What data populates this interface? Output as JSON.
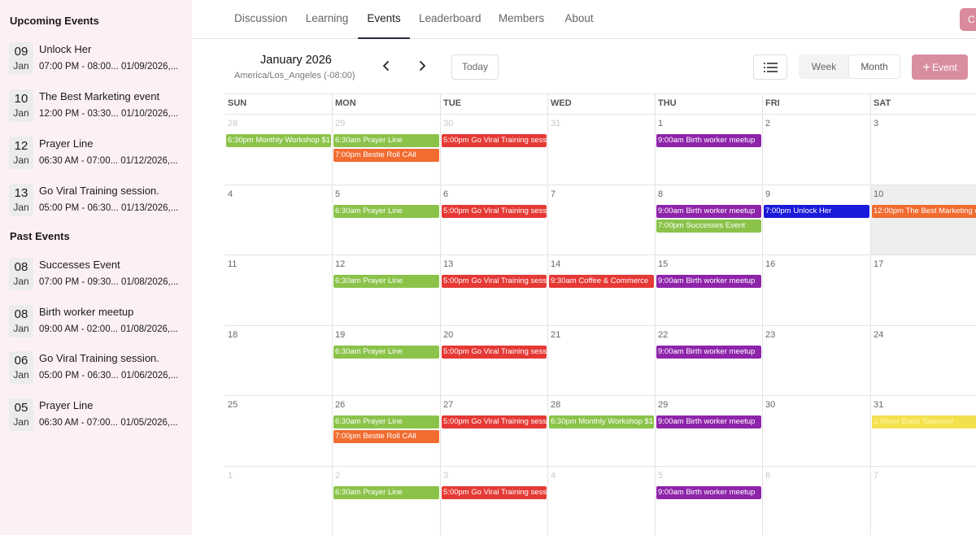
{
  "sidebar": {
    "upcoming_title": "Upcoming Events",
    "upcoming": [
      {
        "day": "09",
        "month": "Jan",
        "title": "Unlock Her",
        "time": "07:00 PM - 08:00...   01/09/2026,..."
      },
      {
        "day": "10",
        "month": "Jan",
        "title": "The Best Marketing event",
        "time": "12:00 PM - 03:30...   01/10/2026,..."
      },
      {
        "day": "12",
        "month": "Jan",
        "title": "Prayer Line",
        "time": "06:30 AM - 07:00...   01/12/2026,..."
      },
      {
        "day": "13",
        "month": "Jan",
        "title": "Go Viral Training session.",
        "time": "05:00 PM - 06:30...   01/13/2026,..."
      }
    ],
    "past_title": "Past Events",
    "past": [
      {
        "day": "08",
        "month": "Jan",
        "title": "Successes Event",
        "time": "07:00 PM - 09:30...   01/08/2026,..."
      },
      {
        "day": "08",
        "month": "Jan",
        "title": "Birth worker meetup",
        "time": "09:00 AM - 02:00...   01/08/2026,..."
      },
      {
        "day": "06",
        "month": "Jan",
        "title": "Go Viral Training session.",
        "time": "05:00 PM - 06:30...   01/06/2026,..."
      },
      {
        "day": "05",
        "month": "Jan",
        "title": "Prayer Line",
        "time": "06:30 AM - 07:00...   01/05/2026,..."
      }
    ]
  },
  "nav": {
    "tabs": [
      "Discussion",
      "Learning",
      "Events",
      "Leaderboard",
      "Members",
      "About"
    ],
    "active": "Events",
    "corner_button": "C"
  },
  "calendar": {
    "month_title": "January 2026",
    "timezone": "America/Los_Angeles (-08:00)",
    "prev_icon": "chevron-left-icon",
    "next_icon": "chevron-right-icon",
    "today_label": "Today",
    "week_label": "Week",
    "month_label": "Month",
    "add_event_label": "Event",
    "weekdays": [
      "SUN",
      "MON",
      "TUE",
      "WED",
      "THU",
      "FRI",
      "SAT"
    ],
    "weeks": [
      {
        "days": [
          "28",
          "29",
          "30",
          "31",
          "1",
          "2",
          "3"
        ],
        "muted": [
          true,
          true,
          true,
          true,
          false,
          false,
          false
        ]
      },
      {
        "days": [
          "4",
          "5",
          "6",
          "7",
          "8",
          "9",
          "10"
        ],
        "muted": [
          false,
          false,
          false,
          false,
          false,
          false,
          false
        ],
        "highlight": 6
      },
      {
        "days": [
          "11",
          "12",
          "13",
          "14",
          "15",
          "16",
          "17"
        ],
        "muted": [
          false,
          false,
          false,
          false,
          false,
          false,
          false
        ]
      },
      {
        "days": [
          "18",
          "19",
          "20",
          "21",
          "22",
          "23",
          "24"
        ],
        "muted": [
          false,
          false,
          false,
          false,
          false,
          false,
          false
        ]
      },
      {
        "days": [
          "25",
          "26",
          "27",
          "28",
          "29",
          "30",
          "31"
        ],
        "muted": [
          false,
          false,
          false,
          false,
          false,
          false,
          false
        ]
      },
      {
        "days": [
          "1",
          "2",
          "3",
          "4",
          "5",
          "6",
          "7"
        ],
        "muted": [
          true,
          true,
          true,
          true,
          true,
          true,
          true
        ]
      }
    ],
    "colors": {
      "green": "#8bc34a",
      "orange": "#f26b2f",
      "red": "#e53935",
      "purple": "#8e24aa",
      "blue": "#1a1adb",
      "yellow": "#f4e04d"
    },
    "events": [
      {
        "week": 0,
        "day": 0,
        "slot": 0,
        "color": "green",
        "label": "6:30pm Monthly Workshop $1"
      },
      {
        "week": 0,
        "day": 1,
        "slot": 0,
        "color": "green",
        "label": "6:30am Prayer Line"
      },
      {
        "week": 0,
        "day": 1,
        "slot": 1,
        "color": "orange",
        "label": "7:00pm Bestie Roll CAll"
      },
      {
        "week": 0,
        "day": 2,
        "slot": 0,
        "color": "red",
        "label": "5:00pm Go Viral Training sess"
      },
      {
        "week": 0,
        "day": 4,
        "slot": 0,
        "color": "purple",
        "label": "9:00am Birth worker meetup"
      },
      {
        "week": 1,
        "day": 1,
        "slot": 0,
        "color": "green",
        "label": "6:30am Prayer Line"
      },
      {
        "week": 1,
        "day": 2,
        "slot": 0,
        "color": "red",
        "label": "5:00pm Go Viral Training sess"
      },
      {
        "week": 1,
        "day": 4,
        "slot": 0,
        "color": "purple",
        "label": "9:00am Birth worker meetup"
      },
      {
        "week": 1,
        "day": 4,
        "slot": 1,
        "color": "green",
        "label": "7:00pm Successes Event"
      },
      {
        "week": 1,
        "day": 5,
        "slot": 0,
        "color": "blue",
        "label": "7:00pm Unlock Her"
      },
      {
        "week": 1,
        "day": 6,
        "slot": 0,
        "color": "orange",
        "label": "12:00pm The Best Marketing e"
      },
      {
        "week": 2,
        "day": 1,
        "slot": 0,
        "color": "green",
        "label": "6:30am Prayer Line"
      },
      {
        "week": 2,
        "day": 2,
        "slot": 0,
        "color": "red",
        "label": "5:00pm Go Viral Training sess"
      },
      {
        "week": 2,
        "day": 3,
        "slot": 0,
        "color": "red",
        "label": "9:30am Coffee & Commerce"
      },
      {
        "week": 2,
        "day": 4,
        "slot": 0,
        "color": "purple",
        "label": "9:00am Birth worker meetup"
      },
      {
        "week": 3,
        "day": 1,
        "slot": 0,
        "color": "green",
        "label": "6:30am Prayer Line"
      },
      {
        "week": 3,
        "day": 2,
        "slot": 0,
        "color": "red",
        "label": "5:00pm Go Viral Training sess"
      },
      {
        "week": 3,
        "day": 4,
        "slot": 0,
        "color": "purple",
        "label": "9:00am Birth worker meetup"
      },
      {
        "week": 4,
        "day": 1,
        "slot": 0,
        "color": "green",
        "label": "6:30am Prayer Line"
      },
      {
        "week": 4,
        "day": 1,
        "slot": 1,
        "color": "orange",
        "label": "7:00pm Bestie Roll CAll"
      },
      {
        "week": 4,
        "day": 2,
        "slot": 0,
        "color": "red",
        "label": "5:00pm Go Viral Training sess"
      },
      {
        "week": 4,
        "day": 3,
        "slot": 0,
        "color": "green",
        "label": "6:30pm Monthly Workshop $1"
      },
      {
        "week": 4,
        "day": 4,
        "slot": 0,
        "color": "purple",
        "label": "9:00am Birth worker meetup"
      },
      {
        "week": 4,
        "day": 6,
        "slot": 0,
        "color": "yellow",
        "label": "2:00pm Black Takeover"
      },
      {
        "week": 5,
        "day": 1,
        "slot": 0,
        "color": "green",
        "label": "6:30am Prayer Line"
      },
      {
        "week": 5,
        "day": 2,
        "slot": 0,
        "color": "red",
        "label": "5:00pm Go Viral Training sess"
      },
      {
        "week": 5,
        "day": 4,
        "slot": 0,
        "color": "purple",
        "label": "9:00am Birth worker meetup"
      }
    ]
  }
}
